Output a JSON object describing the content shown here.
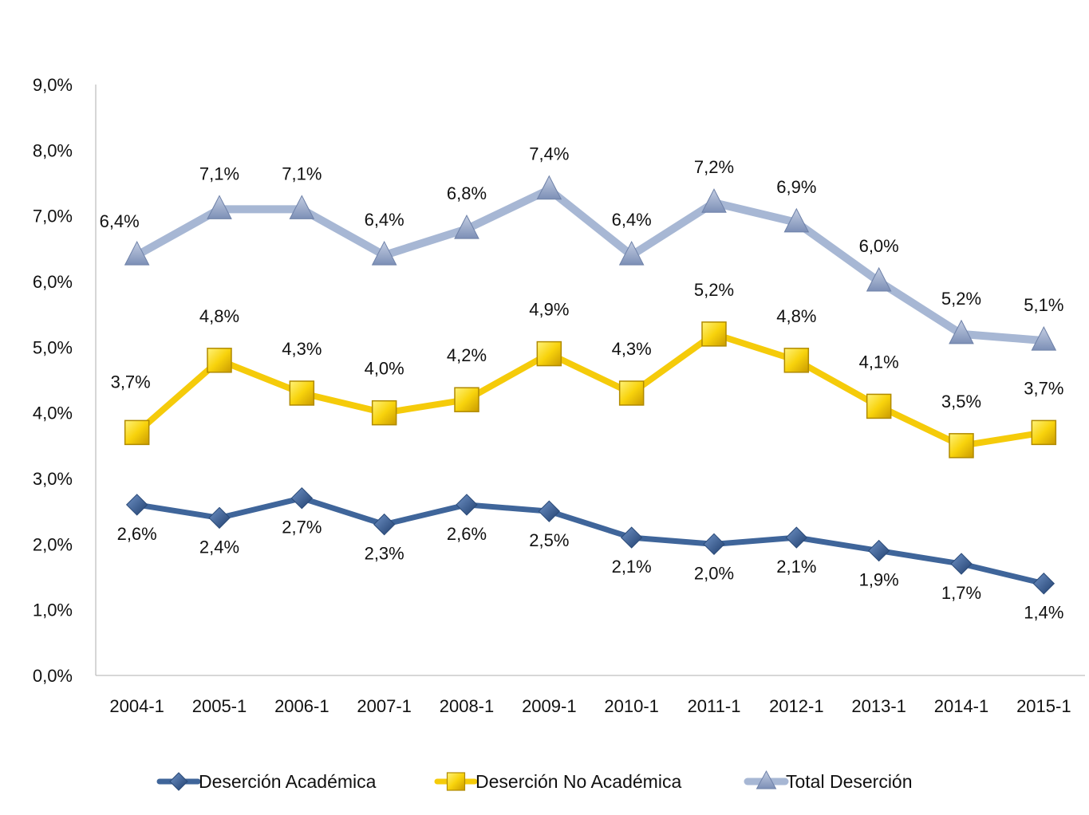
{
  "chart_data": {
    "type": "line",
    "categories": [
      "2004-1",
      "2005-1",
      "2006-1",
      "2007-1",
      "2008-1",
      "2009-1",
      "2010-1",
      "2011-1",
      "2012-1",
      "2013-1",
      "2014-1",
      "2015-1"
    ],
    "ylim": [
      0,
      9
    ],
    "yticks": [
      0,
      1,
      2,
      3,
      4,
      5,
      6,
      7,
      8,
      9
    ],
    "ytick_labels": [
      "0,0%",
      "1,0%",
      "2,0%",
      "3,0%",
      "4,0%",
      "5,0%",
      "6,0%",
      "7,0%",
      "8,0%",
      "9,0%"
    ],
    "grid": false,
    "legend_position": "bottom",
    "series": [
      {
        "name": "Deserción Académica",
        "marker": "diamond",
        "color": "#3F659A",
        "values": [
          2.6,
          2.4,
          2.7,
          2.3,
          2.6,
          2.5,
          2.1,
          2.0,
          2.1,
          1.9,
          1.7,
          1.4
        ],
        "labels": [
          "2,6%",
          "2,4%",
          "2,7%",
          "2,3%",
          "2,6%",
          "2,5%",
          "2,1%",
          "2,0%",
          "2,1%",
          "1,9%",
          "1,7%",
          "1,4%"
        ]
      },
      {
        "name": "Deserción No Académica",
        "marker": "square",
        "color": "#F5CB0A",
        "values": [
          3.7,
          4.8,
          4.3,
          4.0,
          4.2,
          4.9,
          4.3,
          5.2,
          4.8,
          4.1,
          3.5,
          3.7
        ],
        "labels": [
          "3,7%",
          "4,8%",
          "4,3%",
          "4,0%",
          "4,2%",
          "4,9%",
          "4,3%",
          "5,2%",
          "4,8%",
          "4,1%",
          "3,5%",
          "3,7%"
        ]
      },
      {
        "name": "Total Deserción",
        "marker": "triangle",
        "color": "#A7B7D4",
        "values": [
          6.4,
          7.1,
          7.1,
          6.4,
          6.8,
          7.4,
          6.4,
          7.2,
          6.9,
          6.0,
          5.2,
          5.1
        ],
        "labels": [
          "6,4%",
          "7,1%",
          "7,1%",
          "6,4%",
          "6,8%",
          "7,4%",
          "6,4%",
          "7,2%",
          "6,9%",
          "6,0%",
          "5,2%",
          "5,1%"
        ]
      }
    ]
  }
}
